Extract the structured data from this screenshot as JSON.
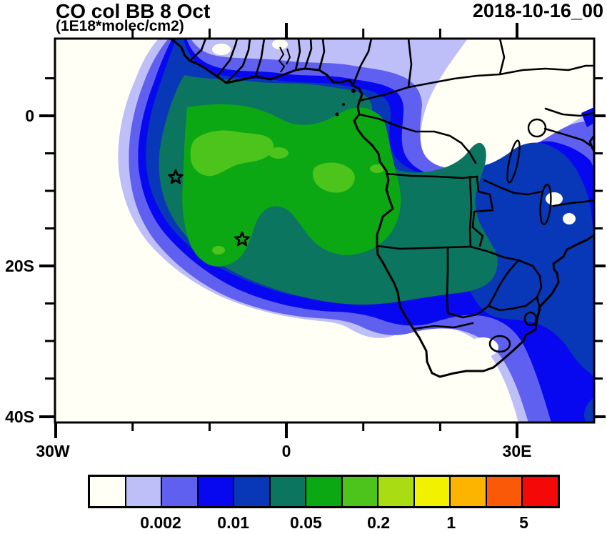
{
  "title": "CO col BB 8 Oct",
  "subtitle": "(1E18*molec/cm2)",
  "timestamp": "2018-10-16_00",
  "axes": {
    "x_tick_labels": [
      "30W",
      "0",
      "30E"
    ],
    "y_tick_labels": [
      "0",
      "20S",
      "40S"
    ]
  },
  "colorbar": {
    "colors": [
      "#FFFFF6",
      "#BEBEF8",
      "#6060F0",
      "#0808F0",
      "#0838B8",
      "#0B7560",
      "#0CA814",
      "#4CC41C",
      "#AADC14",
      "#F2F200",
      "#FCB400",
      "#FA5A08",
      "#F50808"
    ],
    "labels": [
      "0.002",
      "0.01",
      "0.05",
      "0.2",
      "1",
      "5"
    ]
  },
  "chart_data": {
    "type": "heatmap",
    "title": "CO col BB 8 Oct",
    "units": "1E18*molec/cm2",
    "valid_time": "2018-10-16_00",
    "region": "Africa / South Atlantic",
    "lon_range": [
      -30,
      40
    ],
    "lat_range": [
      -41,
      10.5
    ],
    "contour_levels": [
      0.001,
      0.002,
      0.005,
      0.01,
      0.02,
      0.05,
      0.1,
      0.2,
      0.5,
      1,
      2,
      5
    ],
    "level_colors": [
      "#FFFFF6",
      "#BEBEF8",
      "#6060F0",
      "#0808F0",
      "#0838B8",
      "#0B7560",
      "#0CA814",
      "#4CC41C",
      "#AADC14",
      "#F2F200",
      "#FCB400",
      "#FA5A08",
      "#F50808"
    ],
    "labeled_levels": [
      0.002,
      0.01,
      0.05,
      0.2,
      1,
      5
    ],
    "max_filled_level_visible": "0.1-0.2",
    "plume_description": "Biomass-burning CO column plume: maximum 0.1-0.2 (bright green) over the SE Atlantic off Angola/Congo; 0.02-0.1 (teal/green) covers the Congo basin, Angola and Zambia; 0.001-0.02 halo (lavender to dark blue) extends from the Gulf of Guinea across southern Africa with a tail down the Mozambique coast to the bottom-right; background <0.001 (white) over NE Africa, the western Atlantic and the South Africa interior",
    "markers": [
      {
        "symbol": "star",
        "lon_approx": -14.4,
        "lat_approx": -8.2
      },
      {
        "symbol": "star",
        "lon_approx": -5.8,
        "lat_approx": -16.5
      }
    ],
    "grid": false,
    "legend_position": "bottom"
  }
}
